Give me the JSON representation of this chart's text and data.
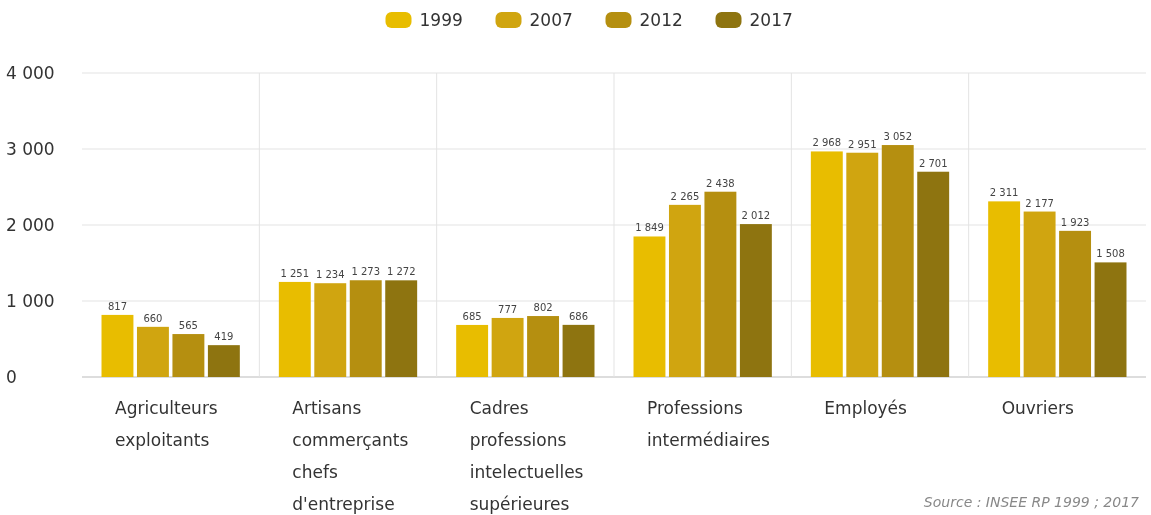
{
  "chart_data": {
    "type": "bar",
    "categories": [
      "Agriculteurs\nexploitants",
      "Artisans\ncommerçants\nchefs\nd'entreprise",
      "Cadres\nprofessions\nintelectuelles\nsupérieures",
      "Professions\nintermédiaires",
      "Employés",
      "Ouvriers"
    ],
    "series": [
      {
        "name": "1999",
        "color": "#e8bd00",
        "values": [
          817,
          1251,
          685,
          1849,
          2968,
          2311
        ],
        "value_labels": [
          "817",
          "1 251",
          "685",
          "1 849",
          "2 968",
          "2 311"
        ]
      },
      {
        "name": "2007",
        "color": "#d0a510",
        "values": [
          660,
          1234,
          777,
          2265,
          2951,
          2177
        ],
        "value_labels": [
          "660",
          "1 234",
          "777",
          "2 265",
          "2 951",
          "2 177"
        ]
      },
      {
        "name": "2012",
        "color": "#b58f10",
        "values": [
          565,
          1273,
          802,
          2438,
          3052,
          1923
        ],
        "value_labels": [
          "565",
          "1 273",
          "802",
          "2 438",
          "3 052",
          "1 923"
        ]
      },
      {
        "name": "2017",
        "color": "#8e7410",
        "values": [
          419,
          1272,
          686,
          2012,
          2701,
          1508
        ],
        "value_labels": [
          "419",
          "1 272",
          "686",
          "2 012",
          "2 701",
          "1 508"
        ]
      }
    ],
    "ylim": [
      0,
      4000
    ],
    "yticks": [
      {
        "value": 0,
        "label": "0"
      },
      {
        "value": 1000,
        "label": "1 000"
      },
      {
        "value": 2000,
        "label": "2 000"
      },
      {
        "value": 3000,
        "label": "3 000"
      },
      {
        "value": 4000,
        "label": "4 000"
      }
    ],
    "grid": true,
    "legend": "top",
    "annotations": [
      "Source : INSEE RP 1999 ; 2017"
    ]
  }
}
